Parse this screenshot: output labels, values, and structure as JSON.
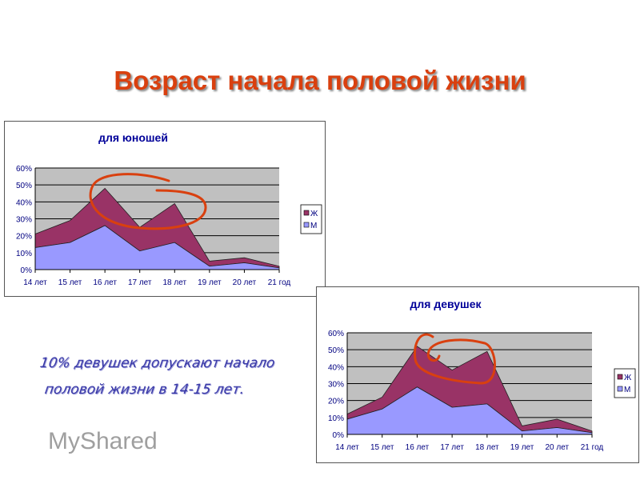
{
  "slide": {
    "title": "Возраст начала половой жизни",
    "note_line1": "10% девушек допускают начало",
    "note_line2": "половой жизни в 14-15 лет.",
    "watermark": "MyShared"
  },
  "colors": {
    "series_m": "#9999ff",
    "series_zh": "#993366",
    "plot_bg": "#c0c0c0",
    "title": "#000099",
    "annotation": "#d9400f"
  },
  "chart_data": [
    {
      "type": "area",
      "stacked": true,
      "title": "для юношей",
      "categories": [
        "14 лет",
        "15 лет",
        "16 лет",
        "17 лет",
        "18 лет",
        "19 лет",
        "20 лет",
        "21 год"
      ],
      "series": [
        {
          "name": "М",
          "values": [
            13,
            16,
            26,
            11,
            16,
            2,
            4,
            1
          ]
        },
        {
          "name": "Ж",
          "values": [
            8,
            13,
            22,
            14,
            23,
            3,
            3,
            1
          ]
        }
      ],
      "yticks": [
        "0%",
        "10%",
        "20%",
        "30%",
        "40%",
        "50%",
        "60%"
      ],
      "ylim": [
        0,
        60
      ],
      "legend": [
        "Ж",
        "М"
      ],
      "legend_position": "right",
      "grid": true
    },
    {
      "type": "area",
      "stacked": true,
      "title": "для девушек",
      "categories": [
        "14 лет",
        "15 лет",
        "16 лет",
        "17 лет",
        "18 лет",
        "19 лет",
        "20 лет",
        "21 год"
      ],
      "series": [
        {
          "name": "М",
          "values": [
            9,
            15,
            28,
            16,
            18,
            2,
            4,
            1
          ]
        },
        {
          "name": "Ж",
          "values": [
            3,
            7,
            24,
            22,
            31,
            3,
            5,
            1
          ]
        }
      ],
      "yticks": [
        "0%",
        "10%",
        "20%",
        "30%",
        "40%",
        "50%",
        "60%"
      ],
      "ylim": [
        0,
        60
      ],
      "legend": [
        "Ж",
        "М"
      ],
      "legend_position": "right",
      "grid": true
    }
  ]
}
